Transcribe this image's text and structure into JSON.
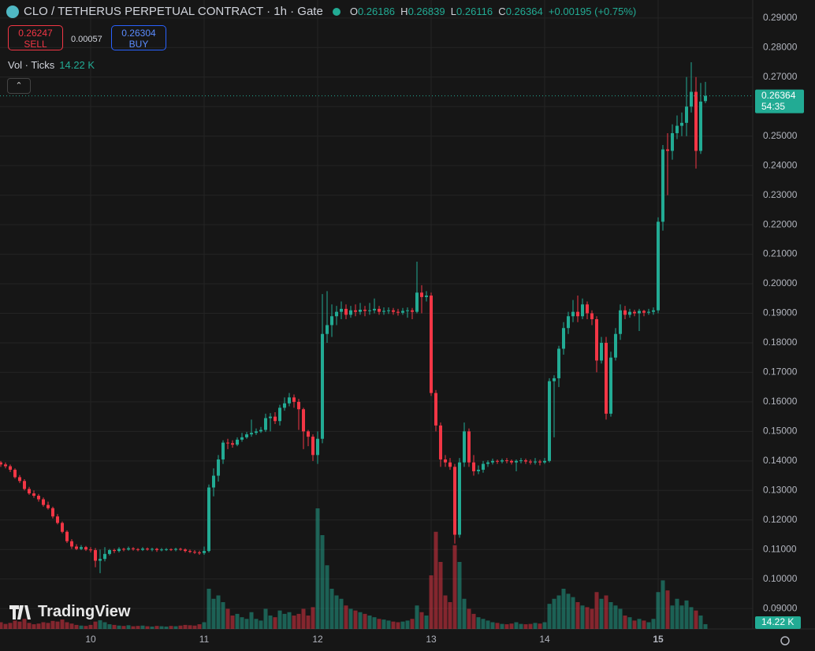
{
  "chart_data": {
    "type": "candlestick",
    "symbol": "CLO / TETHERUS PERPETUAL CONTRACT · 1h · Gate",
    "ohlc_letters": [
      "O",
      "H",
      "L",
      "C"
    ],
    "change": "+0.00195 (+0.75%)",
    "sell": {
      "price": 0.26247,
      "label": "SELL"
    },
    "spread": 0.00057,
    "buy": {
      "price": 0.26304,
      "label": "BUY"
    },
    "volume_title": "Vol · Ticks",
    "volume_last_label": "14.22 K",
    "countdown": "54:35",
    "watermark": "TradingView",
    "up_color": "#22ab94",
    "down_color": "#f23645",
    "grid": true,
    "ylim": [
      0.0831,
      0.2961
    ],
    "yticks": [
      {
        "value": 0.09,
        "label": "0.09000"
      },
      {
        "value": 0.1,
        "label": "0.10000"
      },
      {
        "value": 0.11,
        "label": "0.11000"
      },
      {
        "value": 0.12,
        "label": "0.12000"
      },
      {
        "value": 0.13,
        "label": "0.13000"
      },
      {
        "value": 0.14,
        "label": "0.14000"
      },
      {
        "value": 0.15,
        "label": "0.15000"
      },
      {
        "value": 0.16,
        "label": "0.16000"
      },
      {
        "value": 0.17,
        "label": "0.17000"
      },
      {
        "value": 0.18,
        "label": "0.18000"
      },
      {
        "value": 0.19,
        "label": "0.19000"
      },
      {
        "value": 0.2,
        "label": "0.20000"
      },
      {
        "value": 0.21,
        "label": "0.21000"
      },
      {
        "value": 0.22,
        "label": "0.22000"
      },
      {
        "value": 0.23,
        "label": "0.23000"
      },
      {
        "value": 0.24,
        "label": "0.24000"
      },
      {
        "value": 0.25,
        "label": "0.25000"
      },
      {
        "value": 0.26,
        "label": "0.26000"
      },
      {
        "value": 0.27,
        "label": "0.27000"
      },
      {
        "value": 0.28,
        "label": "0.28000"
      },
      {
        "value": 0.29,
        "label": "0.29000"
      }
    ],
    "xticks": [
      {
        "value": 19,
        "label": "10"
      },
      {
        "value": 43,
        "label": "11"
      },
      {
        "value": 67,
        "label": "12"
      },
      {
        "value": 91,
        "label": "13"
      },
      {
        "value": 115,
        "label": "14"
      },
      {
        "value": 139,
        "label": "15"
      }
    ],
    "volume_ylim": [
      0,
      400000
    ],
    "open": [
      0.1395,
      0.1388,
      0.1382,
      0.137,
      0.1345,
      0.1332,
      0.1305,
      0.129,
      0.1282,
      0.127,
      0.1251,
      0.124,
      0.1212,
      0.119,
      0.116,
      0.1128,
      0.111,
      0.1102,
      0.1108,
      0.11,
      0.1098,
      0.1062,
      0.1068,
      0.1085,
      0.1098,
      0.1095,
      0.1102,
      0.11,
      0.1104,
      0.1101,
      0.1099,
      0.1103,
      0.11,
      0.1102,
      0.1098,
      0.11,
      0.1101,
      0.1099,
      0.1102,
      0.11,
      0.1095,
      0.1092,
      0.109,
      0.1088,
      0.1095,
      0.131,
      0.135,
      0.1405,
      0.1462,
      0.146,
      0.1455,
      0.1472,
      0.148,
      0.149,
      0.1495,
      0.15,
      0.1505,
      0.1545,
      0.155,
      0.1535,
      0.158,
      0.1595,
      0.1615,
      0.16,
      0.1575,
      0.15,
      0.1482,
      0.142,
      0.1475,
      0.183,
      0.186,
      0.189,
      0.1905,
      0.1915,
      0.1895,
      0.191,
      0.1905,
      0.1912,
      0.1908,
      0.191,
      0.1915,
      0.1905,
      0.1908,
      0.191,
      0.1905,
      0.1902,
      0.1908,
      0.191,
      0.1905,
      0.197,
      0.1955,
      0.196,
      0.163,
      0.152,
      0.1405,
      0.1395,
      0.138,
      0.115,
      0.1395,
      0.15,
      0.1395,
      0.1365,
      0.137,
      0.139,
      0.1395,
      0.14,
      0.1398,
      0.1402,
      0.14,
      0.1395,
      0.14,
      0.1402,
      0.1398,
      0.1395,
      0.1398,
      0.1395,
      0.14,
      0.167,
      0.168,
      0.178,
      0.185,
      0.189,
      0.1905,
      0.189,
      0.193,
      0.19,
      0.188,
      0.174,
      0.18,
      0.156,
      0.175,
      0.183,
      0.191,
      0.1895,
      0.1905,
      0.19,
      0.1908,
      0.1902,
      0.1905,
      0.191,
      0.221,
      0.2455,
      0.245,
      0.251,
      0.2535,
      0.2545,
      0.26,
      0.265,
      0.245,
      0.26186
    ],
    "high": [
      0.14,
      0.1395,
      0.1388,
      0.1375,
      0.1352,
      0.1338,
      0.1312,
      0.13,
      0.1288,
      0.1276,
      0.1262,
      0.1245,
      0.122,
      0.1195,
      0.1165,
      0.1135,
      0.1118,
      0.1115,
      0.1112,
      0.1108,
      0.1105,
      0.11,
      0.1108,
      0.1102,
      0.1103,
      0.1108,
      0.1106,
      0.111,
      0.1108,
      0.1105,
      0.1108,
      0.1107,
      0.1106,
      0.1106,
      0.1105,
      0.1105,
      0.1104,
      0.1106,
      0.1106,
      0.1104,
      0.11,
      0.1098,
      0.1096,
      0.111,
      0.132,
      0.1375,
      0.142,
      0.147,
      0.1475,
      0.147,
      0.148,
      0.1495,
      0.1498,
      0.154,
      0.151,
      0.1515,
      0.156,
      0.1562,
      0.1565,
      0.159,
      0.1615,
      0.163,
      0.1625,
      0.161,
      0.158,
      0.1505,
      0.149,
      0.15,
      0.1965,
      0.1975,
      0.193,
      0.1925,
      0.194,
      0.193,
      0.1925,
      0.193,
      0.1935,
      0.1925,
      0.1935,
      0.195,
      0.1925,
      0.192,
      0.192,
      0.1918,
      0.1915,
      0.1918,
      0.192,
      0.1918,
      0.2075,
      0.1995,
      0.1975,
      0.197,
      0.164,
      0.153,
      0.142,
      0.141,
      0.139,
      0.141,
      0.153,
      0.151,
      0.142,
      0.1385,
      0.14,
      0.1402,
      0.1408,
      0.1405,
      0.1408,
      0.141,
      0.1405,
      0.1405,
      0.141,
      0.1408,
      0.1405,
      0.141,
      0.1404,
      0.141,
      0.168,
      0.169,
      0.179,
      0.187,
      0.1905,
      0.1945,
      0.196,
      0.195,
      0.194,
      0.191,
      0.189,
      0.182,
      0.182,
      0.177,
      0.185,
      0.193,
      0.1925,
      0.1915,
      0.1912,
      0.1915,
      0.1912,
      0.1915,
      0.192,
      0.2225,
      0.247,
      0.251,
      0.254,
      0.257,
      0.258,
      0.27,
      0.275,
      0.27,
      0.268,
      0.26839
    ],
    "low": [
      0.138,
      0.1375,
      0.1362,
      0.134,
      0.1325,
      0.13,
      0.1285,
      0.1275,
      0.1262,
      0.1245,
      0.1235,
      0.1205,
      0.1185,
      0.1155,
      0.1122,
      0.1102,
      0.1098,
      0.1098,
      0.1095,
      0.109,
      0.104,
      0.102,
      0.106,
      0.108,
      0.1088,
      0.109,
      0.1094,
      0.1096,
      0.1096,
      0.1094,
      0.1095,
      0.1096,
      0.1094,
      0.1092,
      0.1094,
      0.1095,
      0.1095,
      0.1094,
      0.1096,
      0.109,
      0.1088,
      0.1085,
      0.1082,
      0.1082,
      0.109,
      0.128,
      0.133,
      0.139,
      0.144,
      0.1445,
      0.145,
      0.1465,
      0.1475,
      0.1482,
      0.1488,
      0.1495,
      0.1498,
      0.15,
      0.1525,
      0.152,
      0.157,
      0.1585,
      0.158,
      0.1505,
      0.144,
      0.145,
      0.14,
      0.139,
      0.146,
      0.18,
      0.182,
      0.186,
      0.188,
      0.188,
      0.1885,
      0.189,
      0.1895,
      0.189,
      0.1895,
      0.19,
      0.1895,
      0.1895,
      0.1898,
      0.1895,
      0.1892,
      0.1895,
      0.1885,
      0.188,
      0.19,
      0.19,
      0.194,
      0.162,
      0.15,
      0.138,
      0.138,
      0.137,
      0.112,
      0.114,
      0.138,
      0.138,
      0.135,
      0.1355,
      0.136,
      0.138,
      0.1388,
      0.139,
      0.1392,
      0.1392,
      0.1388,
      0.1365,
      0.1392,
      0.139,
      0.1388,
      0.1388,
      0.1385,
      0.139,
      0.1395,
      0.148,
      0.165,
      0.176,
      0.183,
      0.187,
      0.187,
      0.188,
      0.188,
      0.186,
      0.17,
      0.173,
      0.154,
      0.155,
      0.174,
      0.181,
      0.188,
      0.1885,
      0.189,
      0.184,
      0.189,
      0.1895,
      0.1895,
      0.19,
      0.218,
      0.23,
      0.242,
      0.249,
      0.25,
      0.25,
      0.258,
      0.239,
      0.244,
      0.26116
    ],
    "close": [
      0.1388,
      0.1382,
      0.137,
      0.1345,
      0.1332,
      0.1305,
      0.129,
      0.1282,
      0.127,
      0.1251,
      0.124,
      0.1212,
      0.119,
      0.116,
      0.1128,
      0.111,
      0.1102,
      0.1108,
      0.11,
      0.1098,
      0.1062,
      0.1068,
      0.1085,
      0.1098,
      0.1095,
      0.1102,
      0.11,
      0.1104,
      0.1101,
      0.1099,
      0.1103,
      0.11,
      0.1102,
      0.1098,
      0.11,
      0.1101,
      0.1099,
      0.1102,
      0.11,
      0.1095,
      0.1092,
      0.109,
      0.1088,
      0.1095,
      0.131,
      0.135,
      0.1405,
      0.1462,
      0.146,
      0.1455,
      0.1472,
      0.148,
      0.149,
      0.1495,
      0.15,
      0.1505,
      0.1545,
      0.155,
      0.1535,
      0.158,
      0.1595,
      0.1615,
      0.16,
      0.1575,
      0.15,
      0.1482,
      0.142,
      0.1475,
      0.183,
      0.186,
      0.189,
      0.1905,
      0.1915,
      0.1895,
      0.191,
      0.1905,
      0.1912,
      0.1908,
      0.191,
      0.1915,
      0.1905,
      0.1908,
      0.191,
      0.1905,
      0.1902,
      0.1908,
      0.191,
      0.1905,
      0.197,
      0.1955,
      0.196,
      0.163,
      0.152,
      0.1405,
      0.1395,
      0.138,
      0.115,
      0.1395,
      0.15,
      0.1395,
      0.1365,
      0.137,
      0.139,
      0.1395,
      0.14,
      0.1398,
      0.1402,
      0.14,
      0.1395,
      0.14,
      0.1402,
      0.1398,
      0.1395,
      0.1398,
      0.1395,
      0.14,
      0.167,
      0.168,
      0.178,
      0.185,
      0.189,
      0.1905,
      0.189,
      0.193,
      0.19,
      0.188,
      0.174,
      0.18,
      0.156,
      0.175,
      0.183,
      0.191,
      0.1895,
      0.1905,
      0.19,
      0.1908,
      0.1902,
      0.1905,
      0.191,
      0.221,
      0.2455,
      0.245,
      0.251,
      0.2535,
      0.2545,
      0.26,
      0.265,
      0.245,
      0.2617,
      0.26364
    ],
    "volume": [
      20000,
      15000,
      18000,
      25000,
      22000,
      30000,
      18000,
      14000,
      16000,
      20000,
      18000,
      24000,
      22000,
      28000,
      20000,
      16000,
      12000,
      10000,
      9000,
      12000,
      22000,
      26000,
      20000,
      14000,
      12000,
      10000,
      9000,
      11000,
      8000,
      9000,
      10000,
      8000,
      7000,
      9000,
      8000,
      7000,
      9000,
      8000,
      10000,
      12000,
      11000,
      10000,
      14000,
      20000,
      120000,
      90000,
      100000,
      80000,
      60000,
      40000,
      45000,
      35000,
      30000,
      50000,
      30000,
      25000,
      60000,
      40000,
      35000,
      55000,
      45000,
      50000,
      40000,
      45000,
      60000,
      40000,
      65000,
      360000,
      280000,
      190000,
      120000,
      100000,
      90000,
      70000,
      60000,
      55000,
      50000,
      45000,
      40000,
      35000,
      30000,
      28000,
      25000,
      22000,
      20000,
      22000,
      25000,
      30000,
      70000,
      50000,
      40000,
      160000,
      290000,
      200000,
      100000,
      80000,
      250000,
      200000,
      90000,
      60000,
      45000,
      35000,
      30000,
      25000,
      20000,
      18000,
      15000,
      14000,
      16000,
      20000,
      15000,
      14000,
      15000,
      18000,
      16000,
      20000,
      75000,
      90000,
      100000,
      120000,
      105000,
      95000,
      80000,
      70000,
      65000,
      60000,
      110000,
      90000,
      100000,
      80000,
      70000,
      60000,
      40000,
      35000,
      25000,
      30000,
      25000,
      20000,
      30000,
      110000,
      145000,
      115000,
      70000,
      90000,
      70000,
      85000,
      65000,
      55000,
      40000,
      14220
    ]
  }
}
